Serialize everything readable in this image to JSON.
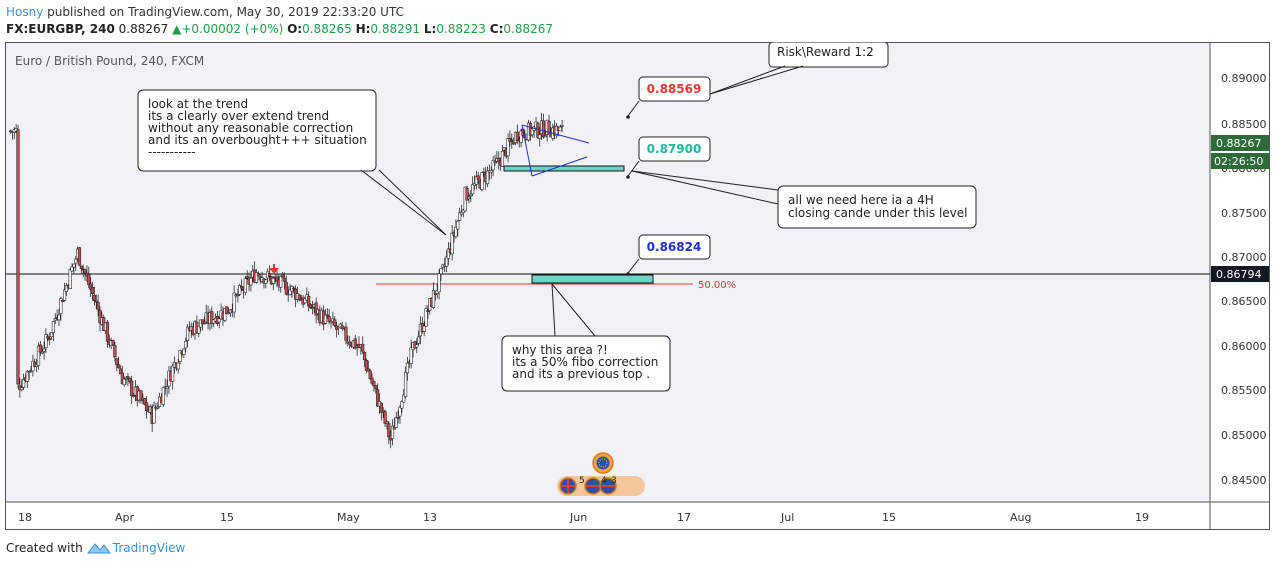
{
  "header": {
    "author": "Hosny",
    "published_text": "published on TradingView.com, May 30, 2019 22:33:20 UTC",
    "symbol": "FX:EURGBP, 240",
    "last_price": "0.88267",
    "change": "+0.00002 (+0%)",
    "open_label": "O:",
    "open": "0.88265",
    "high_label": "H:",
    "high": "0.88291",
    "low_label": "L:",
    "low": "0.88223",
    "close_label": "C:",
    "close": "0.88267"
  },
  "chart": {
    "legend_title": "Euro / British Pound, 240, FXCM",
    "price_axis_ticks": [
      "0.89000",
      "0.88500",
      "0.88000",
      "0.87500",
      "0.87000",
      "0.86500",
      "0.86000",
      "0.85500",
      "0.85000",
      "0.84500"
    ],
    "time_axis_ticks": [
      "18",
      "Apr",
      "15",
      "May",
      "13",
      "Jun",
      "17",
      "Jul",
      "15",
      "Aug",
      "19"
    ],
    "current_price_badge": "0.88267",
    "countdown_badge": "02:26:50",
    "horizontal_line_badge": "0.86794",
    "fib_label": "50.00%",
    "event_badges": [
      "5",
      "4",
      "3"
    ]
  },
  "chart_data": {
    "type": "candlestick",
    "title": "Euro / British Pound, 240, FXCM",
    "y_range": [
      0.844,
      0.892
    ],
    "x_range": [
      "Mar 18 2019",
      "Aug 26 2019"
    ],
    "horizontal_line": 0.86794,
    "fib_50_level": 0.8671,
    "current_price": 0.88267,
    "approx_path": [
      {
        "date": "Mar 18",
        "price": 0.856
      },
      {
        "date": "Mar 22",
        "price": 0.861
      },
      {
        "date": "Mar 26",
        "price": 0.87
      },
      {
        "date": "Apr 1",
        "price": 0.857
      },
      {
        "date": "Apr 5",
        "price": 0.853
      },
      {
        "date": "Apr 10",
        "price": 0.862
      },
      {
        "date": "Apr 15",
        "price": 0.864
      },
      {
        "date": "Apr 19",
        "price": 0.868
      },
      {
        "date": "Apr 24",
        "price": 0.866
      },
      {
        "date": "Apr 29",
        "price": 0.8625
      },
      {
        "date": "May 3",
        "price": 0.86
      },
      {
        "date": "May 7",
        "price": 0.8505
      },
      {
        "date": "May 10",
        "price": 0.86
      },
      {
        "date": "May 14",
        "price": 0.868
      },
      {
        "date": "May 17",
        "price": 0.876
      },
      {
        "date": "May 21",
        "price": 0.879
      },
      {
        "date": "May 24",
        "price": 0.8825
      },
      {
        "date": "May 28",
        "price": 0.883
      },
      {
        "date": "May 30",
        "price": 0.8827
      }
    ]
  },
  "annotations": {
    "risk_reward": "Risk\\Reward 1:2",
    "target_price": "0.88569",
    "level_price": "0.87900",
    "stop_price": "0.86824",
    "trend_note": [
      "look at  the trend",
      "its a clearly over extend trend",
      "without any reasonable correction",
      "and its an overbought+++ situation",
      "-----------"
    ],
    "close_note": [
      "all we need here ia a 4H",
      "closing cande under this level"
    ],
    "area_note": [
      "why this area ?!",
      "its a 50% fibo correction",
      "and its a previous top ."
    ]
  },
  "footer": {
    "created_with": "Created with",
    "brand": "TradingView"
  },
  "colors": {
    "chart_bg": "#f1f2f8",
    "up_candle": "#ffffff",
    "down_candle": "#c94a4a",
    "wick": "#2a2a2a",
    "target_red": "#e53935",
    "level_teal": "#1fb5a0",
    "stop_blue": "#1f2fd0",
    "zone_fill": "#6fd3c7",
    "badge_green": "#2e6b3a",
    "badge_black": "#131722"
  }
}
